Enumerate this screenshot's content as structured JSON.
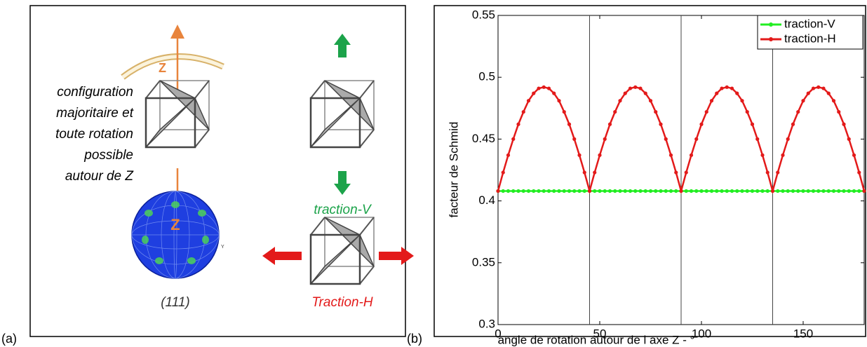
{
  "panel_a": {
    "label": "(a)",
    "caption": [
      "configuration",
      "majoritaire et",
      "toute rotation",
      "possible",
      "autour de Z"
    ],
    "axis_label_cube": "Z",
    "axis_label_sphere": "Z",
    "pole_figure": "(111)",
    "sphere_axis": "Y",
    "traction_v": "traction-V",
    "traction_h": "Traction-H"
  },
  "panel_b": {
    "label": "(b)"
  },
  "chart_data": {
    "type": "line",
    "xlabel": "angle de rotation autour de l axe Z - °",
    "ylabel": "facteur de Schmid",
    "xlim": [
      0,
      180
    ],
    "ylim": [
      0.3,
      0.55
    ],
    "xticks": [
      0,
      50,
      100,
      150
    ],
    "yticks": [
      0.3,
      0.35,
      0.4,
      0.45,
      0.5,
      0.55
    ],
    "vlines": [
      45,
      90,
      135
    ],
    "legend": "upper right",
    "x": [
      0,
      2.5,
      5,
      7.5,
      10,
      12.5,
      15,
      17.5,
      20,
      22.5,
      25,
      27.5,
      30,
      32.5,
      35,
      37.5,
      40,
      42.5,
      45,
      47.5,
      50,
      52.5,
      55,
      57.5,
      60,
      62.5,
      65,
      67.5,
      70,
      72.5,
      75,
      77.5,
      80,
      82.5,
      85,
      87.5,
      90,
      92.5,
      95,
      97.5,
      100,
      102.5,
      105,
      107.5,
      110,
      112.5,
      115,
      117.5,
      120,
      122.5,
      125,
      127.5,
      130,
      132.5,
      135,
      137.5,
      140,
      142.5,
      145,
      147.5,
      150,
      152.5,
      155,
      157.5,
      160,
      162.5,
      165,
      167.5,
      170,
      172.5,
      175,
      177.5,
      180
    ],
    "series": [
      {
        "name": "traction-V",
        "color": "#22ee22",
        "values": [
          0.408,
          0.408,
          0.408,
          0.408,
          0.408,
          0.408,
          0.408,
          0.408,
          0.408,
          0.408,
          0.408,
          0.408,
          0.408,
          0.408,
          0.408,
          0.408,
          0.408,
          0.408,
          0.408,
          0.408,
          0.408,
          0.408,
          0.408,
          0.408,
          0.408,
          0.408,
          0.408,
          0.408,
          0.408,
          0.408,
          0.408,
          0.408,
          0.408,
          0.408,
          0.408,
          0.408,
          0.408,
          0.408,
          0.408,
          0.408,
          0.408,
          0.408,
          0.408,
          0.408,
          0.408,
          0.408,
          0.408,
          0.408,
          0.408,
          0.408,
          0.408,
          0.408,
          0.408,
          0.408,
          0.408,
          0.408,
          0.408,
          0.408,
          0.408,
          0.408,
          0.408,
          0.408,
          0.408,
          0.408,
          0.408,
          0.408,
          0.408,
          0.408,
          0.408,
          0.408,
          0.408,
          0.408,
          0.408
        ]
      },
      {
        "name": "traction-H",
        "color": "#e31a1a",
        "values": [
          0.408,
          0.423,
          0.437,
          0.45,
          0.462,
          0.472,
          0.481,
          0.487,
          0.491,
          0.492,
          0.491,
          0.487,
          0.481,
          0.472,
          0.462,
          0.45,
          0.437,
          0.423,
          0.408,
          0.423,
          0.437,
          0.45,
          0.462,
          0.472,
          0.481,
          0.487,
          0.491,
          0.492,
          0.491,
          0.487,
          0.481,
          0.472,
          0.462,
          0.45,
          0.437,
          0.423,
          0.408,
          0.423,
          0.437,
          0.45,
          0.462,
          0.472,
          0.481,
          0.487,
          0.491,
          0.492,
          0.491,
          0.487,
          0.481,
          0.472,
          0.462,
          0.45,
          0.437,
          0.423,
          0.408,
          0.423,
          0.437,
          0.45,
          0.462,
          0.472,
          0.481,
          0.487,
          0.491,
          0.492,
          0.491,
          0.487,
          0.481,
          0.472,
          0.462,
          0.45,
          0.437,
          0.423,
          0.408
        ]
      }
    ]
  }
}
